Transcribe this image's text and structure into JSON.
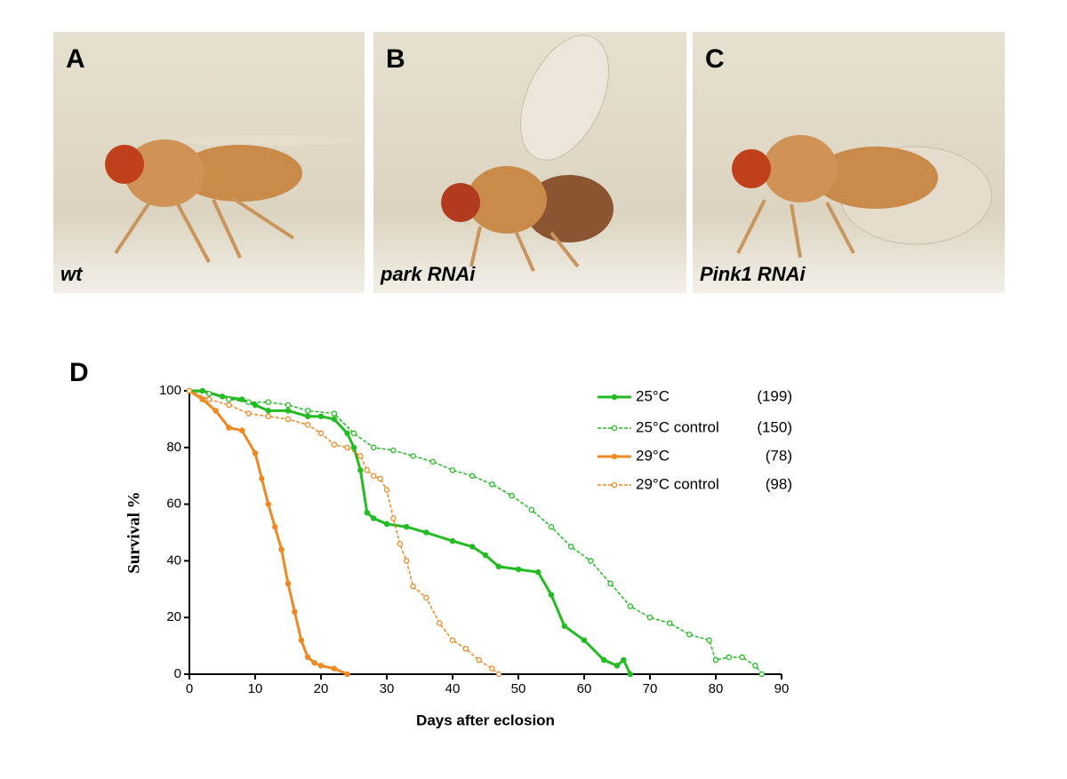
{
  "panels": [
    {
      "label": "A",
      "caption": "wt"
    },
    {
      "label": "B",
      "caption": "park RNAi"
    },
    {
      "label": "C",
      "caption": "Pink1 RNAi"
    }
  ],
  "chart_data": {
    "type": "line",
    "panel_label": "D",
    "x_label": "Days after eclosion",
    "y_label": "Survival %",
    "xlim": [
      0,
      90
    ],
    "ylim": [
      0,
      100
    ],
    "xticks": [
      0,
      10,
      20,
      30,
      40,
      50,
      60,
      70,
      80,
      90
    ],
    "yticks": [
      0,
      20,
      40,
      60,
      80,
      100
    ],
    "series": [
      {
        "name": "25°C",
        "count_label": "(199)",
        "color": "#22bb22",
        "dashed": false,
        "filled": true,
        "x": [
          0,
          2,
          5,
          8,
          10,
          12,
          15,
          18,
          20,
          22,
          24,
          25,
          26,
          27,
          28,
          30,
          33,
          36,
          40,
          43,
          45,
          47,
          50,
          53,
          55,
          57,
          60,
          63,
          65,
          66,
          67
        ],
        "values": [
          100,
          100,
          98,
          97,
          95,
          93,
          93,
          91,
          91,
          90,
          85,
          80,
          72,
          57,
          55,
          53,
          52,
          50,
          47,
          45,
          42,
          38,
          37,
          36,
          28,
          17,
          12,
          5,
          3,
          5,
          0
        ]
      },
      {
        "name": "25°C control",
        "count_label": "(150)",
        "color": "#22bb22",
        "dashed": true,
        "filled": false,
        "x": [
          0,
          3,
          6,
          9,
          12,
          15,
          18,
          22,
          25,
          28,
          31,
          34,
          37,
          40,
          43,
          46,
          49,
          52,
          55,
          58,
          61,
          64,
          67,
          70,
          73,
          76,
          79,
          80,
          82,
          84,
          86,
          87
        ],
        "values": [
          100,
          99,
          97,
          96,
          96,
          95,
          93,
          92,
          85,
          80,
          79,
          77,
          75,
          72,
          70,
          67,
          63,
          58,
          52,
          45,
          40,
          32,
          24,
          20,
          18,
          14,
          12,
          5,
          6,
          6,
          3,
          0
        ]
      },
      {
        "name": "29°C",
        "count_label": "(78)",
        "color": "#ee8822",
        "dashed": false,
        "filled": true,
        "x": [
          0,
          2,
          4,
          6,
          8,
          10,
          11,
          12,
          13,
          14,
          15,
          16,
          17,
          18,
          19,
          20,
          22,
          24
        ],
        "values": [
          100,
          97,
          93,
          87,
          86,
          78,
          69,
          60,
          52,
          44,
          32,
          22,
          12,
          6,
          4,
          3,
          2,
          0
        ]
      },
      {
        "name": "29°C control",
        "count_label": "(98)",
        "color": "#ee8822",
        "dashed": true,
        "filled": false,
        "x": [
          0,
          3,
          6,
          9,
          12,
          15,
          18,
          20,
          22,
          24,
          26,
          27,
          28,
          29,
          30,
          31,
          32,
          33,
          34,
          36,
          38,
          40,
          42,
          44,
          46,
          47
        ],
        "values": [
          100,
          97,
          95,
          92,
          91,
          90,
          88,
          85,
          81,
          80,
          77,
          72,
          70,
          69,
          65,
          55,
          46,
          40,
          31,
          27,
          18,
          12,
          9,
          5,
          2,
          0
        ]
      }
    ]
  }
}
